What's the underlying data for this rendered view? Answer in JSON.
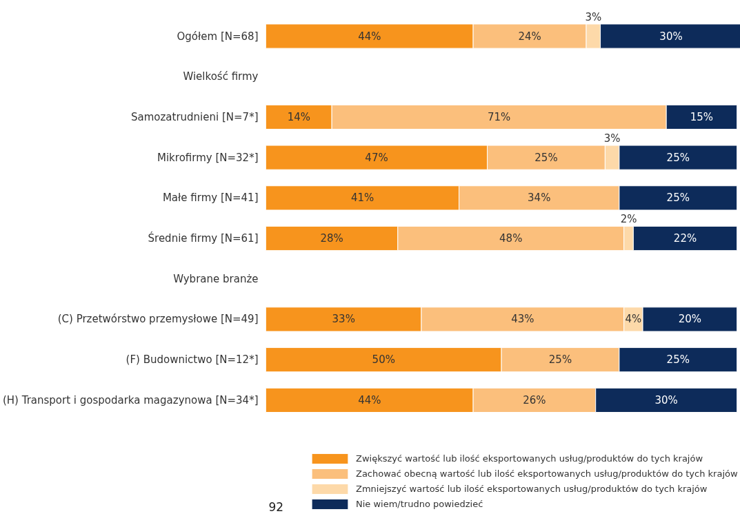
{
  "chart_data": {
    "type": "bar",
    "orientation": "horizontal",
    "stacked": true,
    "legend": "bottom",
    "tick_labels": "y",
    "categories": [
      "Ogółem [N=68]",
      "Wielkość firmy",
      "Samozatrudnieni [N=7*]",
      "Mikrofirmy [N=32*]",
      "Małe firmy [N=41]",
      "Średnie firmy [N=61]",
      "Wybrane branże",
      "(C) Przetwórstwo przemysłowe [N=49]",
      "(F) Budownictwo [N=12*]",
      "(H) Transport i gospodarka magazynowa [N=34*]"
    ],
    "series": [
      {
        "name": "Zwiększyć wartość lub ilość eksportowanych usług/produktów do tych krajów",
        "color": "#f7941d",
        "values": [
          44,
          null,
          14,
          47,
          41,
          28,
          null,
          33,
          50,
          44
        ],
        "value_labels": [
          "44%",
          null,
          "14%",
          "47%",
          "41%",
          "28%",
          null,
          "33%",
          "50%",
          "44%"
        ]
      },
      {
        "name": "Zachować obecną wartość lub ilość eksportowanych usług/produktów do tych krajów",
        "color": "#fbbf7c",
        "values": [
          24,
          null,
          71,
          25,
          34,
          48,
          null,
          43,
          25,
          26
        ],
        "value_labels": [
          "24%",
          null,
          "71%",
          "25%",
          "34%",
          "48%",
          null,
          "43%",
          "25%",
          "26%"
        ]
      },
      {
        "name": "Zmniejszyć wartość lub ilość eksportowanych usług/produktów do tych krajów",
        "color": "#fdd9a9",
        "values": [
          3,
          null,
          null,
          3,
          null,
          2,
          null,
          4,
          null,
          null
        ],
        "value_labels": [
          "3%",
          null,
          null,
          "3%",
          null,
          "2%",
          null,
          "4%",
          null,
          null
        ]
      },
      {
        "name": "Nie wiem/trudno powiedzieć",
        "color": "#0d2b5a",
        "values": [
          30,
          null,
          15,
          25,
          25,
          22,
          null,
          20,
          25,
          30
        ],
        "value_labels": [
          "30%",
          null,
          "15%",
          "25%",
          "25%",
          "22%",
          null,
          "20%",
          "25%",
          "30%"
        ]
      }
    ],
    "annotations": [
      "92"
    ]
  }
}
